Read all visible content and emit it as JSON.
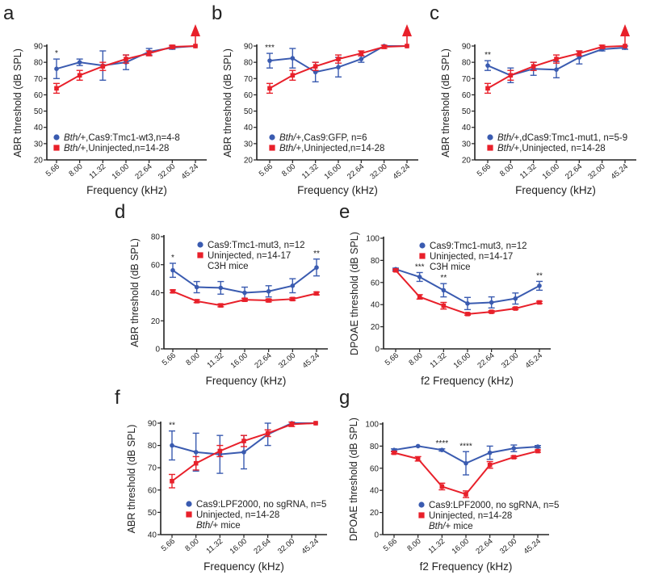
{
  "colors": {
    "blue": "#3a5bb0",
    "red": "#e8202a",
    "axis": "#222222"
  },
  "chart_data": [
    {
      "panel": "a",
      "type": "line",
      "xlabel": "Frequency (kHz)",
      "ylabel": "ABR threshold (dB SPL)",
      "categories": [
        "5.66",
        "8.00",
        "11.32",
        "16.00",
        "22.64",
        "32.00",
        "45.24"
      ],
      "ylim": [
        20,
        90
      ],
      "yticks": [
        20,
        30,
        40,
        50,
        60,
        70,
        80,
        90
      ],
      "arrow_at_last": true,
      "series": [
        {
          "name": "+,Cas9:Tmc1-wt3,n=4-8",
          "italic_prefix": "Bth/",
          "color": "blue",
          "marker": "circle",
          "values": [
            76,
            80,
            78,
            80,
            86.5,
            89,
            90
          ],
          "errors": [
            6,
            2,
            9,
            4.5,
            2,
            1,
            0.5
          ]
        },
        {
          "name": "+,Uninjected,n=14-28",
          "italic_prefix": "Bth/",
          "color": "red",
          "marker": "square",
          "values": [
            64,
            72,
            77.5,
            82,
            85.5,
            89.5,
            90
          ],
          "errors": [
            3,
            3,
            2.5,
            2.5,
            1.5,
            1,
            0.5
          ]
        }
      ],
      "annotations": [
        {
          "category": "5.66",
          "text": "*"
        }
      ],
      "note": ""
    },
    {
      "panel": "b",
      "type": "line",
      "xlabel": "Frequency (kHz)",
      "ylabel": "ABR threshold (dB SPL)",
      "categories": [
        "5.66",
        "8.00",
        "11.32",
        "16.00",
        "22.64",
        "32.00",
        "45.24"
      ],
      "ylim": [
        20,
        90
      ],
      "yticks": [
        20,
        30,
        40,
        50,
        60,
        70,
        80,
        90
      ],
      "arrow_at_last": true,
      "series": [
        {
          "name": "+,Cas9:GFP, n=6",
          "italic_prefix": "Bth/",
          "color": "blue",
          "marker": "circle",
          "values": [
            81,
            82.5,
            74,
            77,
            82,
            90,
            90
          ],
          "errors": [
            4.5,
            6,
            6,
            6,
            2,
            0.5,
            0.5
          ]
        },
        {
          "name": "+,Uninjected,n=14-28",
          "italic_prefix": "Bth/",
          "color": "red",
          "marker": "square",
          "values": [
            64,
            72,
            77.5,
            82,
            85.5,
            89.5,
            90
          ],
          "errors": [
            3,
            3,
            2.5,
            2.5,
            1.5,
            1,
            0.5
          ]
        }
      ],
      "annotations": [
        {
          "category": "5.66",
          "text": "***"
        }
      ],
      "note": ""
    },
    {
      "panel": "c",
      "type": "line",
      "xlabel": "Frequency (kHz)",
      "ylabel": "ABR threshold (dB SPL)",
      "categories": [
        "5.66",
        "8.00",
        "11.32",
        "16.00",
        "22.64",
        "32.00",
        "45.24"
      ],
      "ylim": [
        20,
        90
      ],
      "yticks": [
        20,
        30,
        40,
        50,
        60,
        70,
        80,
        90
      ],
      "arrow_at_last": true,
      "series": [
        {
          "name": "+,dCas9:Tmc1-mut1, n=5-9",
          "italic_prefix": "Bth/",
          "color": "blue",
          "marker": "circle",
          "values": [
            78,
            72,
            76,
            75.5,
            83,
            88,
            89
          ],
          "errors": [
            3,
            4.5,
            4,
            5,
            4,
            1,
            1
          ]
        },
        {
          "name": "+,Uninjected, n=14-28",
          "italic_prefix": "Bth/",
          "color": "red",
          "marker": "square",
          "values": [
            64,
            72,
            77.5,
            82,
            85.5,
            89.5,
            90
          ],
          "errors": [
            3,
            3,
            2.5,
            2.5,
            1.5,
            1,
            0.5
          ]
        }
      ],
      "annotations": [
        {
          "category": "5.66",
          "text": "**"
        }
      ],
      "note": ""
    },
    {
      "panel": "d",
      "type": "line",
      "xlabel": "Frequency (kHz)",
      "ylabel": "ABR threshold (dB SPL)",
      "categories": [
        "5.66",
        "8.00",
        "11.32",
        "16.00",
        "22.64",
        "32.00",
        "45.24"
      ],
      "ylim": [
        0,
        80
      ],
      "yticks": [
        0,
        20,
        40,
        60,
        80
      ],
      "arrow_at_last": false,
      "series": [
        {
          "name": "Cas9:Tmc1-mut3, n=12",
          "italic_prefix": "",
          "color": "blue",
          "marker": "circle",
          "values": [
            56,
            44,
            43.5,
            40,
            41,
            45,
            58
          ],
          "errors": [
            5,
            4,
            4.5,
            4,
            4,
            5,
            6
          ]
        },
        {
          "name": "Uninjected, n=14-17",
          "italic_prefix": "",
          "color": "red",
          "marker": "square",
          "values": [
            41,
            34,
            31,
            35,
            34.5,
            35.5,
            39.5
          ],
          "errors": [
            1,
            1,
            1,
            1,
            1,
            1,
            1
          ]
        }
      ],
      "annotations": [
        {
          "category": "5.66",
          "text": "*"
        },
        {
          "category": "45.24",
          "text": "**"
        }
      ],
      "note": "C3H mice",
      "note_italic_prefix": ""
    },
    {
      "panel": "e",
      "type": "line",
      "xlabel": "f2 Frequency (kHz)",
      "ylabel": "DPOAE threshold (dB SPL)",
      "categories": [
        "5.66",
        "8.00",
        "11.32",
        "16.00",
        "22.64",
        "32.00",
        "45.24"
      ],
      "ylim": [
        0,
        100
      ],
      "yticks": [
        0,
        20,
        40,
        60,
        80,
        100
      ],
      "arrow_at_last": false,
      "series": [
        {
          "name": "Cas9:Tmc1-mut3, n=12",
          "italic_prefix": "",
          "color": "blue",
          "marker": "circle",
          "values": [
            72,
            65,
            53,
            41,
            42,
            45.5,
            57
          ],
          "errors": [
            1,
            4,
            6,
            5.5,
            5,
            5,
            4
          ]
        },
        {
          "name": "Uninjected, n=14-17",
          "italic_prefix": "",
          "color": "red",
          "marker": "square",
          "values": [
            71,
            47,
            39,
            31.5,
            33.5,
            36.5,
            42
          ],
          "errors": [
            1,
            2,
            3,
            1,
            1,
            1,
            1
          ]
        }
      ],
      "annotations": [
        {
          "category": "8.00",
          "text": "***"
        },
        {
          "category": "11.32",
          "text": "**"
        },
        {
          "category": "45.24",
          "text": "**"
        }
      ],
      "note": "C3H mice",
      "note_italic_prefix": ""
    },
    {
      "panel": "f",
      "type": "line",
      "xlabel": "Frequency (kHz)",
      "ylabel": "ABR threshold (dB SPL)",
      "categories": [
        "5.66",
        "8.00",
        "11.32",
        "16.00",
        "22.64",
        "32.00",
        "45.24"
      ],
      "ylim": [
        40,
        90
      ],
      "yticks": [
        40,
        50,
        60,
        70,
        80,
        90
      ],
      "arrow_at_last": false,
      "series": [
        {
          "name": "Cas9:LPF2000, no sgRNA, n=5",
          "italic_prefix": "",
          "color": "blue",
          "marker": "circle",
          "values": [
            80,
            77,
            76,
            77,
            85,
            90,
            90
          ],
          "errors": [
            6.5,
            8.5,
            8.5,
            7.5,
            5,
            0.5,
            0.5
          ]
        },
        {
          "name": "Uninjected, n=14-28",
          "italic_prefix": "",
          "color": "red",
          "marker": "square",
          "values": [
            64,
            72,
            77.5,
            82,
            85.5,
            89.5,
            90
          ],
          "errors": [
            3,
            3,
            2.5,
            2.5,
            1.5,
            1,
            0.5
          ]
        }
      ],
      "annotations": [
        {
          "category": "5.66",
          "text": "**"
        }
      ],
      "note": "+ mice",
      "note_italic_prefix": "Bth/"
    },
    {
      "panel": "g",
      "type": "line",
      "xlabel": "f2 Frequency (kHz)",
      "ylabel": "DPOAE threshold (dB SPL)",
      "categories": [
        "5.66",
        "8.00",
        "11.32",
        "16.00",
        "22.64",
        "32.00",
        "45.24"
      ],
      "ylim": [
        0,
        100
      ],
      "yticks": [
        0,
        20,
        40,
        60,
        80,
        100
      ],
      "arrow_at_last": false,
      "series": [
        {
          "name": "Cas9:LPF2000, no sgRNA, n=5",
          "italic_prefix": "",
          "color": "blue",
          "marker": "circle",
          "values": [
            76.5,
            80,
            76.5,
            64.5,
            74,
            78,
            79.5
          ],
          "errors": [
            1,
            0.5,
            1,
            10.5,
            6,
            3,
            1
          ]
        },
        {
          "name": "Uninjected, n=14-28",
          "italic_prefix": "",
          "color": "red",
          "marker": "square",
          "values": [
            74,
            68.5,
            43.5,
            36.5,
            63,
            70,
            75.5
          ],
          "errors": [
            1,
            2,
            3,
            3,
            3,
            1,
            1
          ]
        }
      ],
      "annotations": [
        {
          "category": "11.32",
          "text": "****"
        },
        {
          "category": "16.00",
          "text": "****"
        }
      ],
      "note": "+ mice",
      "note_italic_prefix": "Bth/"
    }
  ]
}
